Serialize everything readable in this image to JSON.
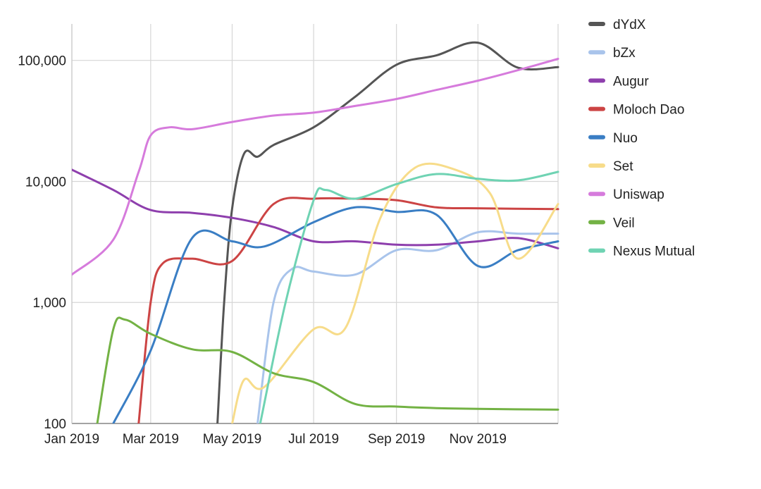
{
  "chart_data": {
    "type": "line",
    "title": "",
    "xlabel": "",
    "ylabel": "",
    "y_scale": "log",
    "ylim": [
      100,
      200000
    ],
    "xlim": [
      "2019-01-01",
      "2019-12-31"
    ],
    "x_ticks": [
      {
        "label": "Jan 2019",
        "date": "2019-01-01"
      },
      {
        "label": "Mar 2019",
        "date": "2019-03-01"
      },
      {
        "label": "May 2019",
        "date": "2019-05-01"
      },
      {
        "label": "Jul 2019",
        "date": "2019-07-01"
      },
      {
        "label": "Sep 2019",
        "date": "2019-09-01"
      },
      {
        "label": "Nov 2019",
        "date": "2019-11-01"
      }
    ],
    "y_ticks": [
      {
        "label": "100",
        "value": 100
      },
      {
        "label": "1,000",
        "value": 1000
      },
      {
        "label": "10,000",
        "value": 10000
      },
      {
        "label": "100,000",
        "value": 100000
      }
    ],
    "grid": true,
    "legend_position": "right",
    "series": [
      {
        "name": "dYdX",
        "color": "#555555",
        "points": [
          [
            "2019-04-20",
            100
          ],
          [
            "2019-04-25",
            1000
          ],
          [
            "2019-05-01",
            6000
          ],
          [
            "2019-05-10",
            17000
          ],
          [
            "2019-05-20",
            16000
          ],
          [
            "2019-06-01",
            20000
          ],
          [
            "2019-07-01",
            28000
          ],
          [
            "2019-08-01",
            50000
          ],
          [
            "2019-09-01",
            92000
          ],
          [
            "2019-10-01",
            110000
          ],
          [
            "2019-11-01",
            140000
          ],
          [
            "2019-12-01",
            87000
          ],
          [
            "2019-12-31",
            88000
          ]
        ]
      },
      {
        "name": "bZx",
        "color": "#a9c4eb",
        "points": [
          [
            "2019-05-20",
            100
          ],
          [
            "2019-06-01",
            1000
          ],
          [
            "2019-06-15",
            1900
          ],
          [
            "2019-07-01",
            1800
          ],
          [
            "2019-08-01",
            1700
          ],
          [
            "2019-09-01",
            2700
          ],
          [
            "2019-10-01",
            2700
          ],
          [
            "2019-11-01",
            3800
          ],
          [
            "2019-12-01",
            3700
          ],
          [
            "2019-12-31",
            3700
          ]
        ]
      },
      {
        "name": "Augur",
        "color": "#8e3fad",
        "points": [
          [
            "2019-01-01",
            12500
          ],
          [
            "2019-02-01",
            8500
          ],
          [
            "2019-03-01",
            5800
          ],
          [
            "2019-04-01",
            5500
          ],
          [
            "2019-05-01",
            5000
          ],
          [
            "2019-06-01",
            4200
          ],
          [
            "2019-07-01",
            3200
          ],
          [
            "2019-08-01",
            3200
          ],
          [
            "2019-09-01",
            3000
          ],
          [
            "2019-10-01",
            3000
          ],
          [
            "2019-11-01",
            3200
          ],
          [
            "2019-12-01",
            3400
          ],
          [
            "2019-12-31",
            2800
          ]
        ]
      },
      {
        "name": "Moloch Dao",
        "color": "#cc4444",
        "points": [
          [
            "2019-02-20",
            100
          ],
          [
            "2019-03-01",
            1000
          ],
          [
            "2019-03-10",
            2100
          ],
          [
            "2019-04-01",
            2300
          ],
          [
            "2019-05-01",
            2200
          ],
          [
            "2019-06-01",
            6500
          ],
          [
            "2019-07-01",
            7200
          ],
          [
            "2019-08-01",
            7200
          ],
          [
            "2019-09-01",
            7000
          ],
          [
            "2019-10-01",
            6100
          ],
          [
            "2019-11-01",
            6000
          ],
          [
            "2019-12-31",
            5900
          ]
        ]
      },
      {
        "name": "Nuo",
        "color": "#3a7ec4",
        "points": [
          [
            "2019-02-01",
            100
          ],
          [
            "2019-03-01",
            400
          ],
          [
            "2019-04-01",
            3400
          ],
          [
            "2019-05-01",
            3200
          ],
          [
            "2019-05-25",
            2900
          ],
          [
            "2019-07-01",
            4600
          ],
          [
            "2019-08-01",
            6100
          ],
          [
            "2019-09-01",
            5600
          ],
          [
            "2019-10-01",
            5300
          ],
          [
            "2019-11-01",
            2000
          ],
          [
            "2019-12-01",
            2700
          ],
          [
            "2019-12-31",
            3200
          ]
        ]
      },
      {
        "name": "Set",
        "color": "#f7dc8a",
        "points": [
          [
            "2019-05-01",
            100
          ],
          [
            "2019-05-10",
            230
          ],
          [
            "2019-05-25",
            200
          ],
          [
            "2019-07-01",
            600
          ],
          [
            "2019-07-25",
            620
          ],
          [
            "2019-08-20",
            5000
          ],
          [
            "2019-09-15",
            13000
          ],
          [
            "2019-10-15",
            12500
          ],
          [
            "2019-11-10",
            8000
          ],
          [
            "2019-12-01",
            2300
          ],
          [
            "2019-12-31",
            6500
          ]
        ]
      },
      {
        "name": "Uniswap",
        "color": "#d67bdc",
        "points": [
          [
            "2019-01-01",
            1700
          ],
          [
            "2019-02-01",
            3300
          ],
          [
            "2019-02-20",
            12000
          ],
          [
            "2019-03-01",
            24000
          ],
          [
            "2019-03-15",
            28000
          ],
          [
            "2019-04-01",
            27000
          ],
          [
            "2019-05-01",
            31000
          ],
          [
            "2019-06-01",
            35000
          ],
          [
            "2019-07-01",
            37000
          ],
          [
            "2019-08-01",
            42000
          ],
          [
            "2019-09-01",
            48000
          ],
          [
            "2019-10-01",
            57000
          ],
          [
            "2019-11-01",
            68000
          ],
          [
            "2019-12-01",
            83000
          ],
          [
            "2019-12-31",
            103000
          ]
        ]
      },
      {
        "name": "Veil",
        "color": "#73b244",
        "points": [
          [
            "2019-01-20",
            100
          ],
          [
            "2019-02-01",
            600
          ],
          [
            "2019-02-10",
            720
          ],
          [
            "2019-03-01",
            550
          ],
          [
            "2019-04-01",
            410
          ],
          [
            "2019-05-01",
            390
          ],
          [
            "2019-06-01",
            260
          ],
          [
            "2019-07-01",
            220
          ],
          [
            "2019-08-01",
            145
          ],
          [
            "2019-09-01",
            138
          ],
          [
            "2019-10-01",
            134
          ],
          [
            "2019-11-01",
            132
          ],
          [
            "2019-12-31",
            130
          ]
        ]
      },
      {
        "name": "Nexus Mutual",
        "color": "#6fd3b3",
        "points": [
          [
            "2019-05-22",
            100
          ],
          [
            "2019-06-10",
            1000
          ],
          [
            "2019-07-01",
            7000
          ],
          [
            "2019-07-10",
            8500
          ],
          [
            "2019-08-01",
            7200
          ],
          [
            "2019-09-01",
            9500
          ],
          [
            "2019-10-01",
            11500
          ],
          [
            "2019-11-01",
            10500
          ],
          [
            "2019-12-01",
            10200
          ],
          [
            "2019-12-31",
            12000
          ]
        ]
      }
    ]
  }
}
